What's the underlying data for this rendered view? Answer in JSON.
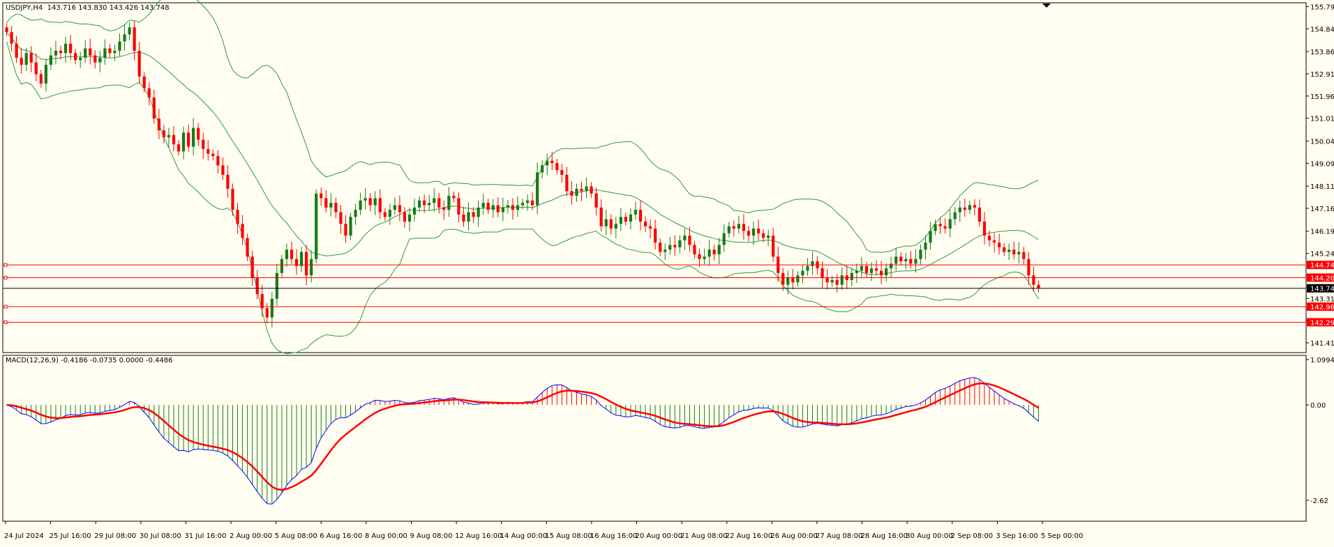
{
  "header": {
    "symbol_line": "USDJPY,H4  143.716 143.830 143.426 143.748",
    "macd_line": "MACD(12,26,9) -0.4186 -0.0735 0.0000 -0.4486"
  },
  "colors": {
    "background": "#fffef0",
    "bull_candle": "#1a7a1a",
    "bear_candle": "#ff0000",
    "bands": "#2a9a4a",
    "level_lines": "#ff0000",
    "current_price_line": "#000000",
    "macd_line": "#0000ff",
    "signal_line": "#ff0000",
    "hist_pos": "#ff0000",
    "hist_neg": "#1a7a1a"
  },
  "chart_data": [
    {
      "type": "candlestick",
      "symbol": "USDJPY",
      "timeframe": "H4",
      "ylim": [
        141.0,
        155.95
      ],
      "y_ticks": [
        "155.790",
        "154.840",
        "153.865",
        "152.915",
        "151.965",
        "151.015",
        "150.040",
        "149.090",
        "148.115",
        "147.165",
        "146.190",
        "145.240",
        "144.290",
        "143.315",
        "142.365",
        "141.415"
      ],
      "x_ticks": [
        "24 Jul 2024",
        "25 Jul 16:00",
        "29 Jul 08:00",
        "30 Jul 08:00",
        "31 Jul 16:00",
        "2 Aug 00:00",
        "5 Aug 08:00",
        "6 Aug 16:00",
        "8 Aug 00:00",
        "9 Aug 08:00",
        "12 Aug 16:00",
        "14 Aug 00:00",
        "15 Aug 08:00",
        "16 Aug 16:00",
        "20 Aug 00:00",
        "21 Aug 08:00",
        "22 Aug 16:00",
        "26 Aug 00:00",
        "27 Aug 08:00",
        "28 Aug 16:00",
        "30 Aug 00:00",
        "2 Sep 08:00",
        "3 Sep 16:00",
        "5 Sep 00:00"
      ],
      "closes": [
        154.7,
        154.2,
        153.6,
        153.3,
        153.8,
        153.4,
        152.9,
        152.5,
        153.3,
        153.7,
        153.9,
        153.8,
        154.2,
        153.8,
        153.5,
        153.6,
        154.0,
        153.7,
        153.4,
        153.6,
        154.0,
        153.8,
        153.9,
        154.3,
        154.6,
        154.9,
        153.9,
        152.8,
        152.3,
        151.9,
        151.0,
        150.5,
        150.2,
        150.3,
        149.9,
        149.6,
        150.4,
        149.8,
        150.6,
        150.1,
        149.7,
        149.5,
        149.4,
        149.0,
        148.6,
        148.0,
        147.1,
        146.5,
        145.9,
        145.1,
        144.2,
        143.5,
        142.9,
        142.5,
        143.3,
        144.4,
        145.0,
        145.4,
        145.0,
        144.7,
        145.3,
        144.3,
        145.0,
        147.8,
        147.6,
        147.2,
        147.4,
        147.0,
        146.5,
        146.0,
        146.8,
        147.1,
        147.5,
        147.6,
        147.3,
        147.6,
        147.0,
        146.8,
        147.1,
        147.3,
        147.0,
        146.6,
        146.9,
        147.2,
        147.5,
        147.3,
        147.4,
        147.6,
        147.2,
        147.1,
        147.7,
        147.6,
        146.9,
        146.6,
        147.0,
        146.8,
        147.2,
        147.4,
        147.1,
        147.3,
        147.0,
        147.2,
        147.3,
        147.1,
        147.3,
        147.4,
        147.5,
        147.3,
        148.7,
        149.0,
        149.2,
        149.1,
        148.8,
        148.6,
        147.9,
        147.7,
        148.0,
        147.9,
        148.1,
        147.8,
        147.2,
        146.4,
        146.7,
        146.3,
        146.5,
        146.8,
        146.6,
        146.9,
        147.1,
        146.6,
        146.4,
        146.3,
        145.7,
        145.3,
        145.4,
        145.6,
        145.5,
        145.8,
        146.0,
        145.6,
        145.2,
        145.0,
        145.1,
        145.4,
        145.2,
        145.6,
        146.1,
        146.4,
        146.3,
        146.5,
        146.2,
        146.0,
        146.3,
        146.1,
        145.9,
        146.0,
        145.1,
        144.4,
        143.9,
        144.2,
        144.0,
        144.3,
        144.5,
        144.7,
        144.9,
        144.6,
        144.2,
        144.0,
        144.1,
        143.9,
        144.3,
        144.1,
        144.4,
        144.5,
        144.7,
        144.4,
        144.6,
        144.5,
        144.3,
        144.6,
        144.8,
        145.1,
        144.9,
        145.0,
        144.8,
        145.0,
        145.4,
        145.7,
        146.2,
        146.5,
        146.4,
        146.3,
        146.7,
        147.0,
        147.2,
        147.1,
        147.3,
        147.2,
        146.6,
        146.0,
        145.8,
        145.7,
        145.5,
        145.3,
        145.4,
        145.2,
        145.3,
        145.0,
        144.3,
        143.9,
        143.75
      ],
      "levels": [
        "144.747",
        "144.203",
        "142.963",
        "142.296"
      ],
      "current_price": "143.748"
    },
    {
      "type": "macd",
      "params": "MACD(12,26,9)",
      "y_ticks": [
        "1.0994",
        "0.00",
        "-2.62"
      ],
      "ylim": [
        -2.7,
        1.15
      ]
    }
  ]
}
